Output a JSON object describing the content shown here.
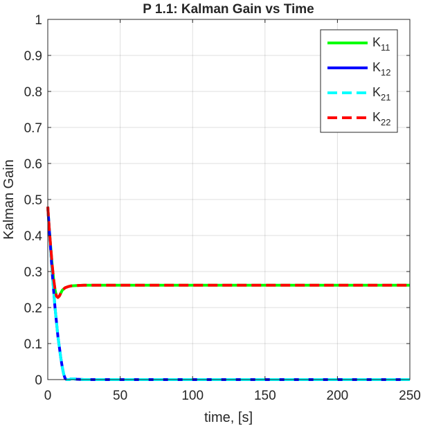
{
  "chart_data": {
    "type": "line",
    "title": "P 1.1: Kalman Gain vs Time",
    "xlabel": "time, [s]",
    "ylabel": "Kalman Gain",
    "xlim": [
      0,
      250
    ],
    "ylim": [
      0,
      1
    ],
    "xticks": [
      0,
      50,
      100,
      150,
      200,
      250
    ],
    "yticks": [
      0,
      0.1,
      0.2,
      0.3,
      0.4,
      0.5,
      0.6,
      0.7,
      0.8,
      0.9,
      1
    ],
    "xtick_labels": [
      "0",
      "50",
      "100",
      "150",
      "200",
      "250"
    ],
    "ytick_labels": [
      "0",
      "0.1",
      "0.2",
      "0.3",
      "0.4",
      "0.5",
      "0.6",
      "0.7",
      "0.8",
      "0.9",
      "1"
    ],
    "grid": true,
    "legend_position": "top-right",
    "series": [
      {
        "name": "K11",
        "base": "K",
        "sub": "11",
        "color": "#00ff00",
        "style": "solid",
        "x": [
          0,
          1,
          2,
          3,
          4,
          5,
          6,
          7,
          8,
          9,
          10,
          12,
          14,
          16,
          20,
          25,
          30,
          50,
          100,
          150,
          200,
          250
        ],
        "y": [
          0.48,
          0.42,
          0.37,
          0.32,
          0.28,
          0.25,
          0.232,
          0.228,
          0.232,
          0.24,
          0.248,
          0.255,
          0.258,
          0.26,
          0.261,
          0.262,
          0.262,
          0.262,
          0.262,
          0.262,
          0.262,
          0.262
        ]
      },
      {
        "name": "K12",
        "base": "K",
        "sub": "12",
        "color": "#0000ff",
        "style": "solid",
        "x": [
          0,
          1,
          2,
          3,
          4,
          5,
          6,
          7,
          8,
          9,
          10,
          11,
          12,
          13,
          14,
          15,
          16,
          18,
          20,
          25,
          30,
          50,
          100,
          150,
          200,
          250
        ],
        "y": [
          0.48,
          0.42,
          0.36,
          0.3,
          0.25,
          0.2,
          0.16,
          0.12,
          0.09,
          0.06,
          0.035,
          0.015,
          0.003,
          0.0,
          0.0,
          0.0,
          0.002,
          0.002,
          0.001,
          0.0,
          0.0,
          0.0,
          0.0,
          0.0,
          0.0,
          0.0
        ]
      },
      {
        "name": "K21",
        "base": "K",
        "sub": "21",
        "color": "#00ffff",
        "style": "dashed",
        "x": [
          0,
          1,
          2,
          3,
          4,
          5,
          6,
          7,
          8,
          9,
          10,
          11,
          12,
          13,
          14,
          15,
          16,
          18,
          20,
          25,
          30,
          50,
          100,
          150,
          200,
          250
        ],
        "y": [
          0.48,
          0.42,
          0.36,
          0.3,
          0.25,
          0.2,
          0.16,
          0.12,
          0.09,
          0.06,
          0.035,
          0.015,
          0.003,
          0.0,
          0.0,
          0.0,
          0.002,
          0.002,
          0.001,
          0.0,
          0.0,
          0.0,
          0.0,
          0.0,
          0.0,
          0.0
        ]
      },
      {
        "name": "K22",
        "base": "K",
        "sub": "22",
        "color": "#ff0000",
        "style": "dashed",
        "x": [
          0,
          1,
          2,
          3,
          4,
          5,
          6,
          7,
          8,
          9,
          10,
          12,
          14,
          16,
          20,
          25,
          30,
          50,
          100,
          150,
          200,
          250
        ],
        "y": [
          0.48,
          0.42,
          0.37,
          0.32,
          0.28,
          0.25,
          0.232,
          0.228,
          0.232,
          0.24,
          0.248,
          0.255,
          0.258,
          0.26,
          0.261,
          0.262,
          0.262,
          0.262,
          0.262,
          0.262,
          0.262,
          0.262
        ]
      }
    ]
  }
}
